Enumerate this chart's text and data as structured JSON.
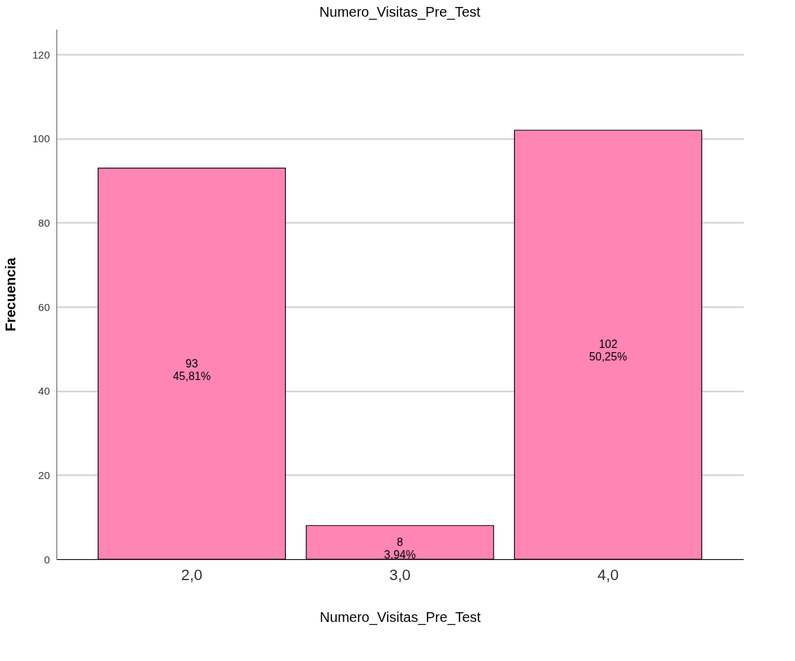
{
  "chart_data": {
    "type": "bar",
    "title": "Numero_Visitas_Pre_Test",
    "xlabel": "Numero_Visitas_Pre_Test",
    "ylabel": "Frecuencia",
    "categories": [
      "2,0",
      "3,0",
      "4,0"
    ],
    "values": [
      93,
      8,
      102
    ],
    "value_labels": [
      "93\n45,81%",
      "8\n3,94%",
      "102\n50,25%"
    ],
    "color": "#ff85b4",
    "ylim": [
      0,
      126
    ],
    "yticks": [
      0,
      20,
      40,
      60,
      80,
      100,
      120
    ],
    "grid": "y"
  }
}
